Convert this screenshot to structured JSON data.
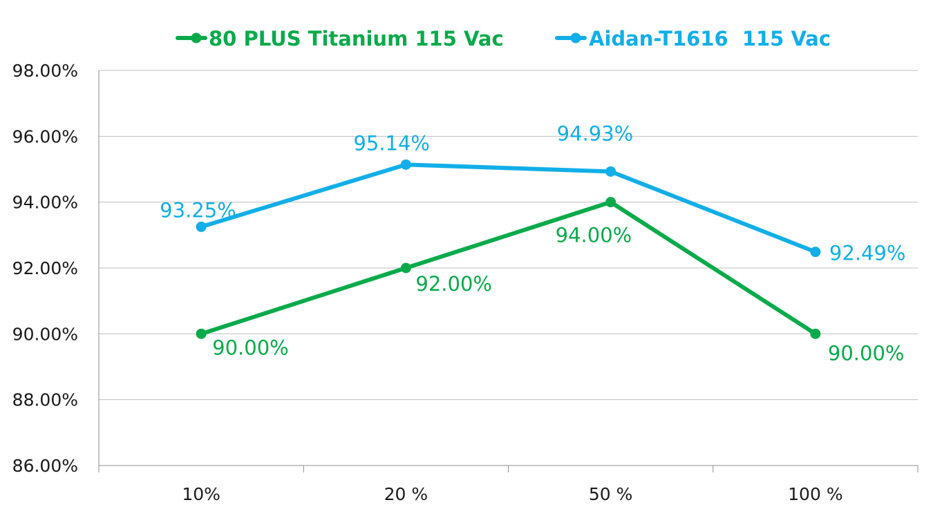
{
  "chart_data": {
    "type": "line",
    "title": "",
    "xlabel": "",
    "ylabel": "",
    "categories": [
      "10%",
      "20 %",
      "50 %",
      "100 %"
    ],
    "ylim": [
      86,
      98
    ],
    "y_step": 2,
    "y_tick_labels": [
      "86.00%",
      "88.00%",
      "90.00%",
      "92.00%",
      "94.00%",
      "96.00%",
      "98.00%"
    ],
    "grid": true,
    "legend_position": "top",
    "series": [
      {
        "name": "80 PLUS Titanium 115 Vac",
        "color": "#0aaa4b",
        "values": [
          90.0,
          92.0,
          94.0,
          90.0
        ],
        "labels": [
          "90.00%",
          "92.00%",
          "94.00%",
          "90.00%"
        ]
      },
      {
        "name": "Aidan-T1616  115 Vac",
        "color": "#12aee8",
        "values": [
          93.25,
          95.14,
          94.93,
          92.49
        ],
        "labels": [
          "93.25%",
          "95.14%",
          "94.93%",
          "92.49%"
        ]
      }
    ]
  }
}
